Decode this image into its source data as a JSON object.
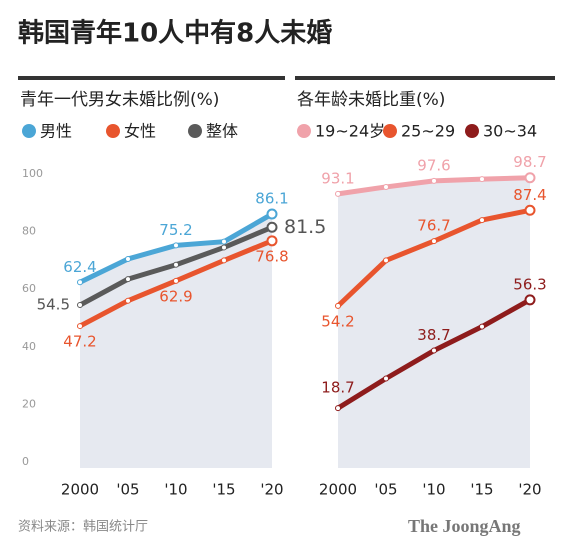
{
  "title": "韩国青年10人中有8人未婚",
  "source": "资料来源：韩国统计厅",
  "logo": "The JoongAng",
  "chart_data": [
    {
      "type": "line",
      "title": "青年一代男女未婚比例(%)",
      "categories": [
        "2000",
        "'05",
        "'10",
        "'15",
        "'20"
      ],
      "ylim": [
        0,
        100
      ],
      "yticks": [
        0,
        20,
        40,
        60,
        80,
        100
      ],
      "series": [
        {
          "name": "男性",
          "color": "#4ba6d6",
          "values": [
            62.4,
            70.5,
            75.2,
            76.5,
            86.1
          ],
          "value_labels": [
            "62.4",
            null,
            "75.2",
            null,
            "86.1"
          ]
        },
        {
          "name": "女性",
          "color": "#e8552e",
          "values": [
            47.2,
            56,
            62.9,
            70,
            76.8
          ],
          "value_labels": [
            "47.2",
            null,
            "62.9",
            null,
            "76.8"
          ]
        },
        {
          "name": "整体",
          "color": "#5a5a5a",
          "values": [
            54.5,
            63.5,
            68.5,
            74.5,
            81.5
          ],
          "value_labels": [
            "54.5",
            null,
            null,
            null,
            "81.5"
          ]
        }
      ]
    },
    {
      "type": "line",
      "title": "各年龄未婚比重(%)",
      "categories": [
        "2000",
        "'05",
        "'10",
        "'15",
        "'20"
      ],
      "ylim": [
        0,
        100
      ],
      "series": [
        {
          "name": "19~24岁",
          "color": "#f0a2aa",
          "values": [
            93.1,
            95.5,
            97.6,
            98.2,
            98.7
          ],
          "value_labels": [
            "93.1",
            null,
            "97.6",
            null,
            "98.7"
          ]
        },
        {
          "name": "25~29",
          "color": "#e8552e",
          "values": [
            54.2,
            70,
            76.7,
            84,
            87.4
          ],
          "value_labels": [
            "54.2",
            null,
            "76.7",
            null,
            "87.4"
          ]
        },
        {
          "name": "30~34",
          "color": "#8e1c1c",
          "values": [
            18.7,
            29,
            38.7,
            47,
            56.3
          ],
          "value_labels": [
            "18.7",
            null,
            "38.7",
            null,
            "56.3"
          ]
        }
      ]
    }
  ]
}
